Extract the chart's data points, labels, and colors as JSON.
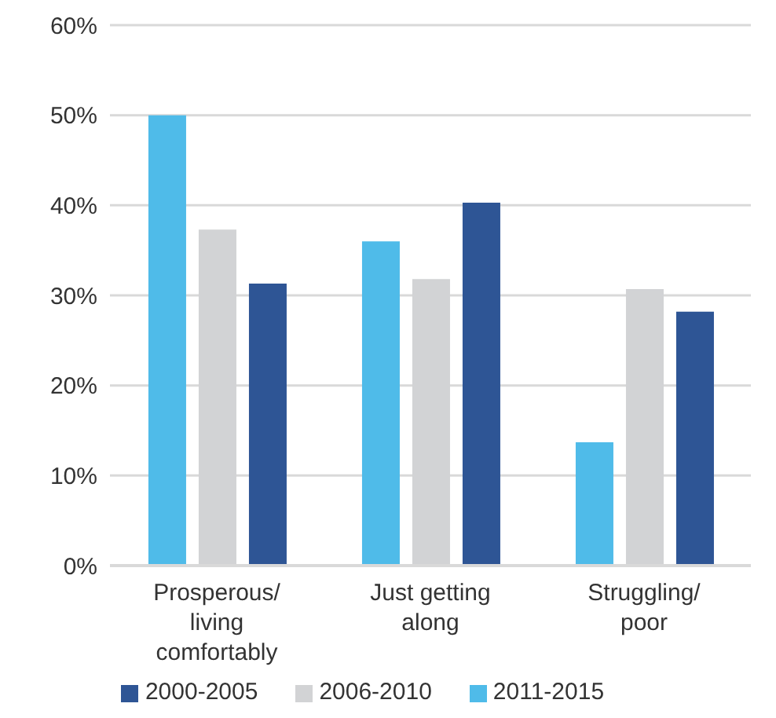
{
  "chart_data": {
    "type": "bar",
    "categories": [
      "Prosperous/ living comfortably",
      "Just getting along",
      "Struggling/ poor"
    ],
    "series": [
      {
        "name": "2011-2015",
        "color": "#4fbbe9",
        "values": [
          50.0,
          36.0,
          13.7
        ]
      },
      {
        "name": "2006-2010",
        "color": "#d2d3d5",
        "values": [
          37.3,
          31.8,
          30.7
        ]
      },
      {
        "name": "2000-2005",
        "color": "#2e5595",
        "values": [
          31.3,
          40.3,
          28.2
        ]
      }
    ],
    "ylim": [
      0,
      60
    ],
    "yticks": [
      {
        "value": 0,
        "label": "0%"
      },
      {
        "value": 10,
        "label": "10%"
      },
      {
        "value": 20,
        "label": "20%"
      },
      {
        "value": 30,
        "label": "30%"
      },
      {
        "value": 40,
        "label": "40%"
      },
      {
        "value": 50,
        "label": "50%"
      },
      {
        "value": 60,
        "label": "60%"
      }
    ],
    "grid": "y",
    "legend": "bottom"
  }
}
